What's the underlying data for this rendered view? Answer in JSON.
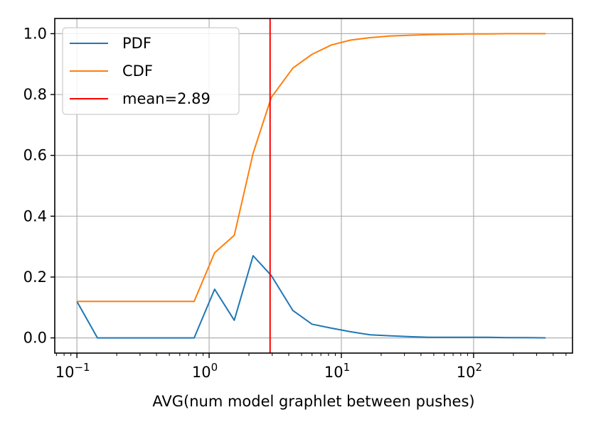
{
  "chart_data": {
    "type": "line",
    "title": "",
    "xlabel": "AVG(num model graphlet between pushes)",
    "ylabel": "",
    "xscale": "log",
    "xlim": [
      0.068,
      560
    ],
    "ylim": [
      -0.05,
      1.05
    ],
    "grid": true,
    "legend_position": "top-left",
    "x_tick_labels": [
      {
        "value": 0.1,
        "base": "10",
        "exp": "−1"
      },
      {
        "value": 1,
        "base": "10",
        "exp": "0"
      },
      {
        "value": 10,
        "base": "10",
        "exp": "1"
      },
      {
        "value": 100,
        "base": "10",
        "exp": "2"
      }
    ],
    "y_ticks": [
      0.0,
      0.2,
      0.4,
      0.6,
      0.8,
      1.0
    ],
    "y_tick_labels": [
      "0.0",
      "0.2",
      "0.4",
      "0.6",
      "0.8",
      "1.0"
    ],
    "series": [
      {
        "name": "PDF",
        "color": "#1f77b4",
        "x": [
          0.1,
          0.143,
          0.77,
          1.1,
          1.55,
          2.15,
          2.95,
          4.3,
          6.0,
          8.4,
          11.8,
          16.5,
          23,
          33,
          46,
          64,
          90,
          128,
          180,
          250,
          350
        ],
        "y": [
          0.12,
          0.0,
          0.0,
          0.16,
          0.058,
          0.27,
          0.205,
          0.09,
          0.045,
          0.032,
          0.02,
          0.01,
          0.007,
          0.004,
          0.002,
          0.002,
          0.002,
          0.002,
          0.001,
          0.001,
          0.0
        ]
      },
      {
        "name": "CDF",
        "color": "#ff7f0e",
        "x": [
          0.1,
          0.143,
          0.77,
          1.1,
          1.55,
          2.15,
          2.95,
          4.3,
          6.0,
          8.4,
          11.8,
          16.5,
          23,
          33,
          46,
          64,
          90,
          128,
          180,
          250,
          350
        ],
        "y": [
          0.12,
          0.12,
          0.12,
          0.28,
          0.337,
          0.607,
          0.79,
          0.887,
          0.932,
          0.963,
          0.979,
          0.987,
          0.992,
          0.995,
          0.997,
          0.998,
          0.999,
          0.999,
          1.0,
          1.0,
          1.0
        ]
      }
    ],
    "vlines": [
      {
        "name": "mean=2.89",
        "x": 2.89,
        "color": "#ff0000"
      }
    ]
  }
}
